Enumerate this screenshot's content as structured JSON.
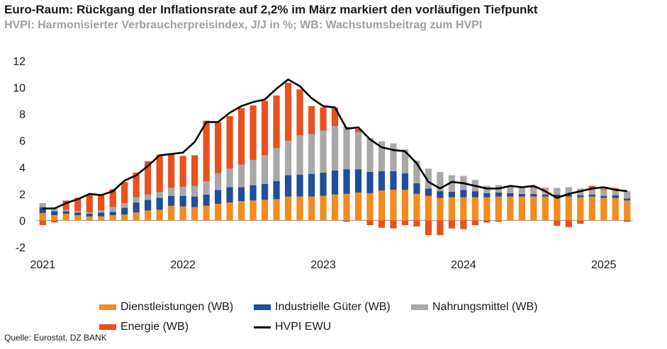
{
  "chart_data": {
    "type": "bar",
    "stacked": true,
    "title": "Euro-Raum: Rückgang der Inflationsrate auf 2,2% im März markiert den vorläufigen Tiefpunkt",
    "subtitle": "HVPI: Harmonisierter Verbraucherpreisindex, J/J in %; WB: Wachstumsbeitrag zum HVPI",
    "source": "Quelle: Eurostat, DZ BANK",
    "ylim": [
      -2,
      12
    ],
    "yticks": [
      "12",
      "10",
      "8",
      "6",
      "4",
      "2",
      "0",
      "-2"
    ],
    "xtick_labels": [
      "2021",
      "2022",
      "2023",
      "2024",
      "2025"
    ],
    "x": [
      "2021-01",
      "2021-02",
      "2021-03",
      "2021-04",
      "2021-05",
      "2021-06",
      "2021-07",
      "2021-08",
      "2021-09",
      "2021-10",
      "2021-11",
      "2021-12",
      "2022-01",
      "2022-02",
      "2022-03",
      "2022-04",
      "2022-05",
      "2022-06",
      "2022-07",
      "2022-08",
      "2022-09",
      "2022-10",
      "2022-11",
      "2022-12",
      "2023-01",
      "2023-02",
      "2023-03",
      "2023-04",
      "2023-05",
      "2023-06",
      "2023-07",
      "2023-08",
      "2023-09",
      "2023-10",
      "2023-11",
      "2023-12",
      "2024-01",
      "2024-02",
      "2024-03",
      "2024-04",
      "2024-05",
      "2024-06",
      "2024-07",
      "2024-08",
      "2024-09",
      "2024-10",
      "2024-11",
      "2024-12",
      "2025-01",
      "2025-02",
      "2025-03"
    ],
    "series": [
      {
        "name": "Dienstleistungen (WB)",
        "color": "#f28c1e",
        "values": [
          0.55,
          0.4,
          0.5,
          0.4,
          0.3,
          0.3,
          0.4,
          0.45,
          0.6,
          0.75,
          0.8,
          1.1,
          1.05,
          1.0,
          1.1,
          1.25,
          1.35,
          1.45,
          1.5,
          1.55,
          1.6,
          1.8,
          1.8,
          1.8,
          1.85,
          1.95,
          2.0,
          2.1,
          2.05,
          2.25,
          2.3,
          2.3,
          2.0,
          1.85,
          1.7,
          1.75,
          1.75,
          1.75,
          1.75,
          1.8,
          1.8,
          1.8,
          1.8,
          1.8,
          1.8,
          1.8,
          1.75,
          1.8,
          1.7,
          1.7,
          1.5
        ]
      },
      {
        "name": "Industrielle Güter (WB)",
        "color": "#1f4e9c",
        "values": [
          0.45,
          0.3,
          0.2,
          0.2,
          0.2,
          0.3,
          0.25,
          0.5,
          0.75,
          0.8,
          0.9,
          0.75,
          0.8,
          0.8,
          0.85,
          1.05,
          1.15,
          1.05,
          1.15,
          1.2,
          1.35,
          1.6,
          1.65,
          1.7,
          1.75,
          1.8,
          1.85,
          1.75,
          1.6,
          1.45,
          1.4,
          1.25,
          0.8,
          0.55,
          0.5,
          0.4,
          0.55,
          0.45,
          0.3,
          0.3,
          0.25,
          0.2,
          0.2,
          0.15,
          0.15,
          0.15,
          0.15,
          0.15,
          0.15,
          0.2,
          0.15
        ]
      },
      {
        "name": "Nahrungsmittel (WB)",
        "color": "#a8a8a8",
        "values": [
          0.3,
          0.3,
          0.1,
          0.1,
          0.1,
          0.15,
          0.35,
          0.35,
          0.4,
          0.4,
          0.45,
          0.6,
          0.7,
          0.8,
          1.0,
          1.25,
          1.4,
          1.7,
          1.9,
          2.15,
          2.5,
          2.6,
          2.95,
          3.0,
          3.15,
          3.35,
          3.2,
          2.8,
          2.55,
          2.25,
          2.1,
          1.8,
          1.7,
          1.5,
          1.45,
          1.25,
          1.05,
          0.85,
          0.55,
          0.55,
          0.5,
          0.5,
          0.45,
          0.45,
          0.5,
          0.55,
          0.5,
          0.5,
          0.45,
          0.5,
          0.55
        ]
      },
      {
        "name": "Energie (WB)",
        "color": "#e8501e",
        "values": [
          -0.35,
          -0.15,
          0.7,
          1.0,
          1.35,
          1.15,
          1.35,
          1.6,
          1.85,
          2.5,
          2.8,
          2.55,
          2.3,
          2.3,
          4.55,
          3.85,
          3.95,
          4.25,
          4.1,
          4.1,
          3.95,
          4.35,
          3.45,
          2.1,
          1.75,
          1.4,
          -0.1,
          0.25,
          -0.35,
          -0.55,
          -0.6,
          -0.35,
          -0.45,
          -1.1,
          -1.1,
          -0.6,
          -0.65,
          -0.35,
          -0.15,
          -0.1,
          0.0,
          0.05,
          0.1,
          0.05,
          -0.4,
          -0.5,
          -0.25,
          0.15,
          0.1,
          0.05,
          -0.1
        ]
      },
      {
        "name": "HVPI EWU",
        "type": "line",
        "color": "#000000",
        "values": [
          0.9,
          0.9,
          1.3,
          1.6,
          2.0,
          1.9,
          2.2,
          3.0,
          3.4,
          4.1,
          4.9,
          5.0,
          5.1,
          5.9,
          7.4,
          7.4,
          8.1,
          8.6,
          8.9,
          9.1,
          9.9,
          10.6,
          10.1,
          9.2,
          8.6,
          8.5,
          6.9,
          7.0,
          6.1,
          5.5,
          5.3,
          5.2,
          4.3,
          2.9,
          2.4,
          2.9,
          2.8,
          2.6,
          2.4,
          2.4,
          2.6,
          2.5,
          2.6,
          2.2,
          1.7,
          2.0,
          2.2,
          2.4,
          2.5,
          2.3,
          2.2
        ]
      }
    ]
  }
}
